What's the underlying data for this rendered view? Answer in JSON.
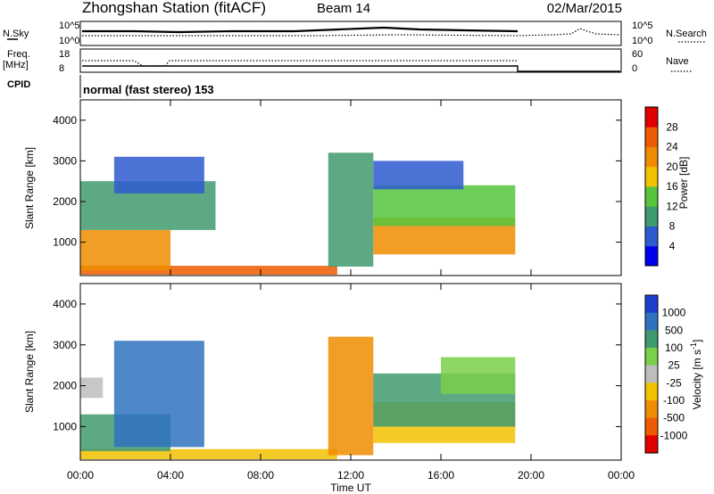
{
  "header": {
    "station": "Zhongshan Station (fitACF)",
    "beam": "Beam 14",
    "date": "02/Mar/2015"
  },
  "strips": {
    "noise": {
      "left_label": "N.Sky",
      "right_label": "N.Search",
      "left_ticks": [
        "10^5",
        "10^0"
      ],
      "right_ticks": [
        "10^5",
        "10^0"
      ]
    },
    "freq": {
      "left_label_line1": "Freq.",
      "left_label_line2": "[MHz]",
      "right_label": "Nave",
      "left_ticks": [
        "18",
        "8"
      ],
      "right_ticks": [
        "60",
        "0"
      ]
    },
    "cpid": {
      "label": "CPID",
      "text": "normal (fast stereo) 153"
    }
  },
  "axes": {
    "xlabel": "Time UT",
    "ylabel": "Slant Range [km]",
    "x_ticks": [
      "00:00",
      "04:00",
      "08:00",
      "12:00",
      "16:00",
      "20:00",
      "00:00"
    ],
    "y_ticks": [
      "4000",
      "3000",
      "2000",
      "1000"
    ]
  },
  "colorbars": {
    "power": {
      "label": "Power [dB]",
      "ticks": [
        "28",
        "24",
        "20",
        "16",
        "12",
        "8",
        "4"
      ],
      "colors": [
        "#0000ee",
        "#2f5bd0",
        "#3f9a6e",
        "#56c43c",
        "#f2c200",
        "#f08c00",
        "#ee5a00",
        "#e00000"
      ]
    },
    "velocity": {
      "label": "Velocity [m s",
      "label_sup": "-1",
      "label_end": "]",
      "ticks": [
        "1000",
        "500",
        "100",
        "25",
        "-25",
        "-100",
        "-500",
        "-1000"
      ],
      "colors": [
        "#1d3fd0",
        "#2f73c0",
        "#3f9a6e",
        "#7ad04a",
        "#bdbdbd",
        "#f2c200",
        "#f08c00",
        "#ee5a00",
        "#e00000"
      ]
    }
  },
  "chart_data": [
    {
      "type": "heatmap",
      "title": "Power",
      "xlabel": "Time UT",
      "ylabel": "Slant Range [km]",
      "xlim": [
        "00:00",
        "24:00"
      ],
      "ylim": [
        180,
        4500
      ],
      "colorbar_label": "Power [dB]",
      "colorbar_range": [
        0,
        30
      ],
      "regions": [
        {
          "t_start": 0.0,
          "t_end": 11.4,
          "r_start": 200,
          "r_end": 420,
          "level_db": 24
        },
        {
          "t_start": 0.0,
          "t_end": 4.0,
          "r_start": 300,
          "r_end": 1300,
          "level_db": 20
        },
        {
          "t_start": 0.0,
          "t_end": 6.0,
          "r_start": 1300,
          "r_end": 2500,
          "level_db": 10
        },
        {
          "t_start": 1.5,
          "t_end": 5.5,
          "r_start": 2200,
          "r_end": 3100,
          "level_db": 7
        },
        {
          "t_start": 11.0,
          "t_end": 13.0,
          "r_start": 400,
          "r_end": 3200,
          "level_db": 10
        },
        {
          "t_start": 13.0,
          "t_end": 19.3,
          "r_start": 700,
          "r_end": 1600,
          "level_db": 20
        },
        {
          "t_start": 13.0,
          "t_end": 19.3,
          "r_start": 1400,
          "r_end": 2400,
          "level_db": 12
        },
        {
          "t_start": 13.0,
          "t_end": 17.0,
          "r_start": 2300,
          "r_end": 3000,
          "level_db": 6
        }
      ]
    },
    {
      "type": "heatmap",
      "title": "Velocity",
      "xlabel": "Time UT",
      "ylabel": "Slant Range [km]",
      "xlim": [
        "00:00",
        "24:00"
      ],
      "ylim": [
        180,
        4500
      ],
      "colorbar_label": "Velocity [m s-1]",
      "colorbar_range": [
        -1000,
        1000
      ],
      "regions": [
        {
          "t_start": 0.0,
          "t_end": 11.4,
          "r_start": 200,
          "r_end": 450,
          "velocity": -100
        },
        {
          "t_start": 0.0,
          "t_end": 4.0,
          "r_start": 400,
          "r_end": 1300,
          "velocity": 100
        },
        {
          "t_start": 0.0,
          "t_end": 1.0,
          "r_start": 1700,
          "r_end": 2200,
          "velocity": 0
        },
        {
          "t_start": 1.5,
          "t_end": 5.5,
          "r_start": 500,
          "r_end": 3100,
          "velocity": 500
        },
        {
          "t_start": 11.0,
          "t_end": 13.0,
          "r_start": 300,
          "r_end": 3200,
          "velocity": -500
        },
        {
          "t_start": 13.0,
          "t_end": 19.3,
          "r_start": 600,
          "r_end": 1600,
          "velocity": -100
        },
        {
          "t_start": 13.0,
          "t_end": 19.3,
          "r_start": 1000,
          "r_end": 2300,
          "velocity": 100
        },
        {
          "t_start": 16.0,
          "t_end": 19.3,
          "r_start": 1800,
          "r_end": 2700,
          "velocity": 25
        }
      ]
    }
  ]
}
